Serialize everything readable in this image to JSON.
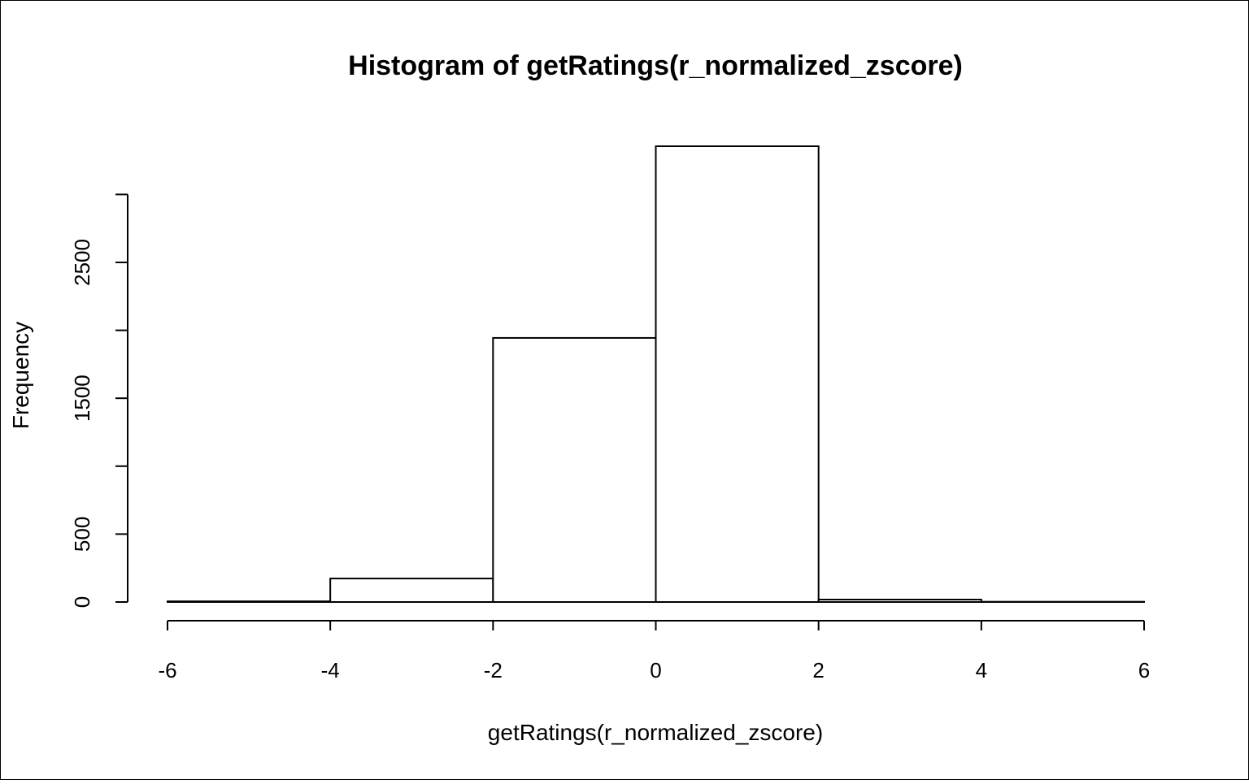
{
  "chart_data": {
    "type": "histogram",
    "title": "Histogram of getRatings(r_normalized_zscore)",
    "x_label": "getRatings(r_normalized_zscore)",
    "y_label": "Frequency",
    "bins": [
      -6,
      -4,
      -2,
      0,
      2,
      4,
      6
    ],
    "values": [
      5,
      173,
      1944,
      3355,
      18,
      2
    ],
    "color": "#ffffff",
    "xlim": [
      -6,
      6
    ],
    "ylim": [
      0,
      3355
    ],
    "xticks": [
      -6,
      -4,
      -2,
      0,
      2,
      4,
      6
    ],
    "yticks": [
      0,
      500,
      1500,
      2500
    ],
    "yticks_unlabeled": [
      1000,
      2000,
      3000
    ]
  }
}
